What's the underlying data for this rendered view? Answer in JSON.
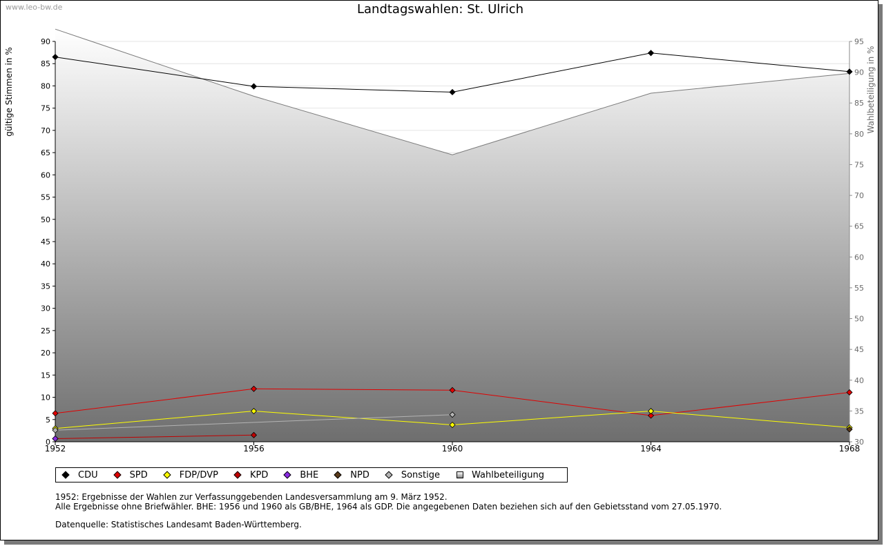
{
  "watermark": "www.leo-bw.de",
  "chart_data": {
    "type": "line",
    "title": "Landtagswahlen: St. Ulrich",
    "ylabel": "gültige Stimmen in %",
    "y2label": "Wahlbeteiligung in %",
    "x": [
      1952,
      1956,
      1960,
      1964,
      1968
    ],
    "xlim": [
      1952,
      1968
    ],
    "ylim": [
      0,
      90
    ],
    "y2lim": [
      30,
      95
    ],
    "yticks": [
      0,
      5,
      10,
      15,
      20,
      25,
      30,
      35,
      40,
      45,
      50,
      55,
      60,
      65,
      70,
      75,
      80,
      85,
      90
    ],
    "y2ticks": [
      30,
      35,
      40,
      45,
      50,
      55,
      60,
      65,
      70,
      75,
      80,
      85,
      90,
      95
    ],
    "series": [
      {
        "name": "CDU",
        "color": "#000000",
        "values": [
          86.5,
          79.9,
          78.6,
          87.4,
          83.2
        ]
      },
      {
        "name": "SPD",
        "color": "#e00000",
        "values": [
          6.4,
          11.9,
          11.6,
          5.9,
          11.1
        ]
      },
      {
        "name": "FDP/DVP",
        "color": "#ffff00",
        "values": [
          3.0,
          6.9,
          3.8,
          6.9,
          3.2
        ]
      },
      {
        "name": "KPD",
        "color": "#c00000",
        "values": [
          0.7,
          1.5,
          null,
          null,
          null
        ]
      },
      {
        "name": "BHE",
        "color": "#8a2be2",
        "values": [
          0.7,
          null,
          null,
          null,
          null
        ]
      },
      {
        "name": "NPD",
        "color": "#5a3a1a",
        "values": [
          null,
          null,
          null,
          null,
          2.8
        ]
      },
      {
        "name": "Sonstige",
        "color": "#b4b4b4",
        "values": [
          2.6,
          null,
          6.1,
          null,
          null
        ]
      }
    ],
    "turnout": {
      "name": "Wahlbeteiligung",
      "axis": "right",
      "values": [
        97.0,
        86.1,
        76.6,
        86.6,
        89.8
      ]
    }
  },
  "legend": [
    {
      "label": "CDU",
      "color": "#000000"
    },
    {
      "label": "SPD",
      "color": "#e00000"
    },
    {
      "label": "FDP/DVP",
      "color": "#ffff00"
    },
    {
      "label": "KPD",
      "color": "#c00000"
    },
    {
      "label": "BHE",
      "color": "#8a2be2"
    },
    {
      "label": "NPD",
      "color": "#5a3a1a"
    },
    {
      "label": "Sonstige",
      "color": "#b4b4b4"
    },
    {
      "label": "Wahlbeteiligung",
      "color": "square"
    }
  ],
  "notes": {
    "line1": "1952: Ergebnisse der Wahlen zur Verfassunggebenden Landesversammlung am 9. März 1952.",
    "line2": "Alle Ergebnisse ohne Briefwähler. BHE: 1956 und 1960 als GB/BHE, 1964 als GDP. Die angegebenen Daten beziehen sich auf den Gebietsstand vom 27.05.1970.",
    "line3": "Datenquelle: Statistisches Landesamt Baden-Württemberg."
  }
}
